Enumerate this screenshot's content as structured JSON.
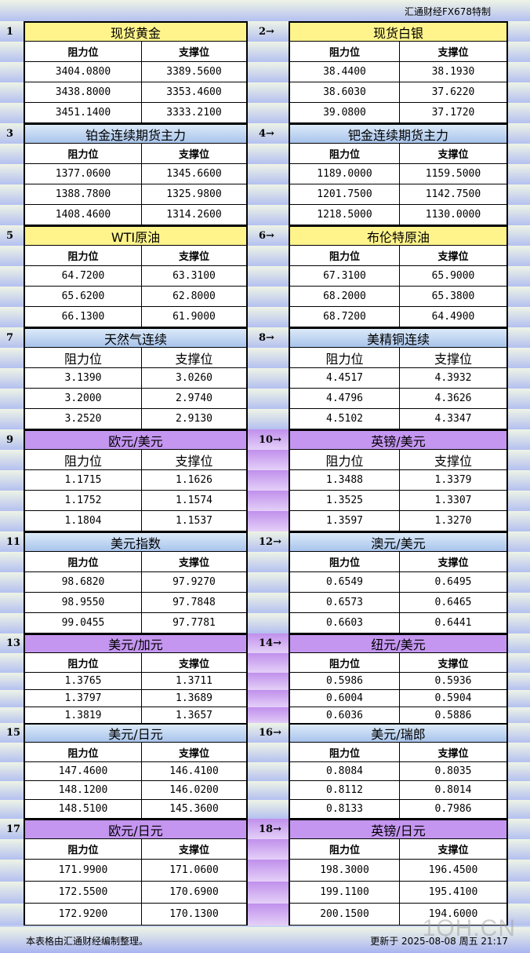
{
  "header": {
    "brand": "汇通财经FX678特制"
  },
  "col_headers": {
    "resistance": "阻力位",
    "support": "支撑位"
  },
  "sections": [
    {
      "no": "1",
      "name": "现货黄金",
      "color": "yellow",
      "rows": [
        [
          "3404.0800",
          "3389.5600"
        ],
        [
          "3438.8000",
          "3353.4600"
        ],
        [
          "3451.1400",
          "3333.2100"
        ]
      ]
    },
    {
      "no": "2→",
      "name": "现货白银",
      "color": "yellow",
      "rows": [
        [
          "38.4400",
          "38.1930"
        ],
        [
          "38.6030",
          "37.6220"
        ],
        [
          "39.0800",
          "37.1720"
        ]
      ]
    },
    {
      "no": "3",
      "name": "铂金连续期货主力",
      "color": "blue",
      "rows": [
        [
          "1377.0600",
          "1345.6600"
        ],
        [
          "1388.7800",
          "1325.9800"
        ],
        [
          "1408.4600",
          "1314.2600"
        ]
      ]
    },
    {
      "no": "4→",
      "name": "钯金连续期货主力",
      "color": "blue",
      "rows": [
        [
          "1189.0000",
          "1159.5000"
        ],
        [
          "1201.7500",
          "1142.7500"
        ],
        [
          "1218.5000",
          "1130.0000"
        ]
      ]
    },
    {
      "no": "5",
      "name": "WTI原油",
      "color": "yellow",
      "rows": [
        [
          "64.7200",
          "63.3100"
        ],
        [
          "65.6200",
          "62.8000"
        ],
        [
          "66.1300",
          "61.9000"
        ]
      ]
    },
    {
      "no": "6→",
      "name": "布伦特原油",
      "color": "yellow",
      "rows": [
        [
          "67.3100",
          "65.9000"
        ],
        [
          "68.2000",
          "65.3800"
        ],
        [
          "68.7200",
          "64.4900"
        ]
      ]
    },
    {
      "no": "7",
      "name": "天然气连续",
      "color": "blue",
      "rows": [
        [
          "3.1390",
          "3.0260"
        ],
        [
          "3.2000",
          "2.9740"
        ],
        [
          "3.2520",
          "2.9130"
        ]
      ]
    },
    {
      "no": "8→",
      "name": "美精铜连续",
      "color": "blue",
      "rows": [
        [
          "4.4517",
          "4.3932"
        ],
        [
          "4.4796",
          "4.3626"
        ],
        [
          "4.5102",
          "4.3347"
        ]
      ]
    },
    {
      "no": "9",
      "name": "欧元/美元",
      "color": "purple",
      "rows": [
        [
          "1.1715",
          "1.1626"
        ],
        [
          "1.1752",
          "1.1574"
        ],
        [
          "1.1804",
          "1.1537"
        ]
      ]
    },
    {
      "no": "10→",
      "name": "英镑/美元",
      "color": "purple",
      "rows": [
        [
          "1.3488",
          "1.3379"
        ],
        [
          "1.3525",
          "1.3307"
        ],
        [
          "1.3597",
          "1.3270"
        ]
      ]
    },
    {
      "no": "11",
      "name": "美元指数",
      "color": "blue",
      "rows": [
        [
          "98.6820",
          "97.9270"
        ],
        [
          "98.9550",
          "97.7848"
        ],
        [
          "99.0455",
          "97.7781"
        ]
      ]
    },
    {
      "no": "12→",
      "name": "澳元/美元",
      "color": "blue",
      "rows": [
        [
          "0.6549",
          "0.6495"
        ],
        [
          "0.6573",
          "0.6465"
        ],
        [
          "0.6603",
          "0.6441"
        ]
      ]
    },
    {
      "no": "13",
      "name": "美元/加元",
      "color": "purple",
      "rows": [
        [
          "1.3765",
          "1.3711"
        ],
        [
          "1.3797",
          "1.3689"
        ],
        [
          "1.3819",
          "1.3657"
        ]
      ]
    },
    {
      "no": "14→",
      "name": "纽元/美元",
      "color": "purple",
      "rows": [
        [
          "0.5986",
          "0.5936"
        ],
        [
          "0.6004",
          "0.5904"
        ],
        [
          "0.6036",
          "0.5886"
        ]
      ]
    },
    {
      "no": "15",
      "name": "美元/日元",
      "color": "blue",
      "rows": [
        [
          "147.4600",
          "146.4100"
        ],
        [
          "148.1200",
          "146.0200"
        ],
        [
          "148.5100",
          "145.3600"
        ]
      ]
    },
    {
      "no": "16→",
      "name": "美元/瑞郎",
      "color": "blue",
      "rows": [
        [
          "0.8084",
          "0.8035"
        ],
        [
          "0.8112",
          "0.8014"
        ],
        [
          "0.8133",
          "0.7986"
        ]
      ]
    },
    {
      "no": "17",
      "name": "欧元/日元",
      "color": "purple",
      "rows": [
        [
          "171.9900",
          "171.0600"
        ],
        [
          "172.5500",
          "170.6900"
        ],
        [
          "172.9200",
          "170.1300"
        ]
      ]
    },
    {
      "no": "18→",
      "name": "英镑/日元",
      "color": "purple",
      "rows": [
        [
          "198.3000",
          "196.4500"
        ],
        [
          "199.1100",
          "195.4100"
        ],
        [
          "200.1500",
          "194.6000"
        ]
      ]
    }
  ],
  "footer": {
    "note": "本表格由汇通财经编制整理。",
    "updated": "更新于 2025-08-08 周五 21:17"
  },
  "watermark": "1QH.CN"
}
